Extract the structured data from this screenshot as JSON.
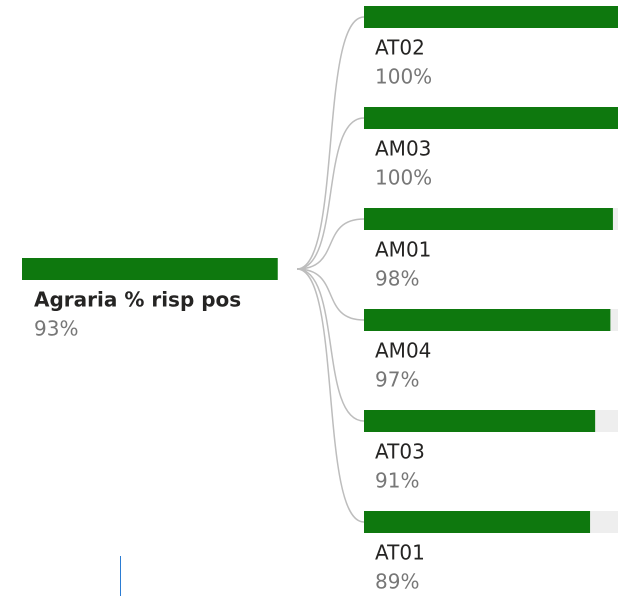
{
  "chart_data": {
    "type": "decomposition",
    "root": {
      "label": "Agraria % risp pos",
      "value": 93,
      "value_label": "93%"
    },
    "categories": [
      "AT02",
      "AM03",
      "AM01",
      "AM04",
      "AT03",
      "AT01"
    ],
    "values": [
      100,
      100,
      98,
      97,
      91,
      89
    ],
    "value_labels": [
      "100%",
      "100%",
      "98%",
      "97%",
      "91%",
      "89%"
    ],
    "xlim": [
      0,
      100
    ],
    "color": "#0e780e"
  }
}
